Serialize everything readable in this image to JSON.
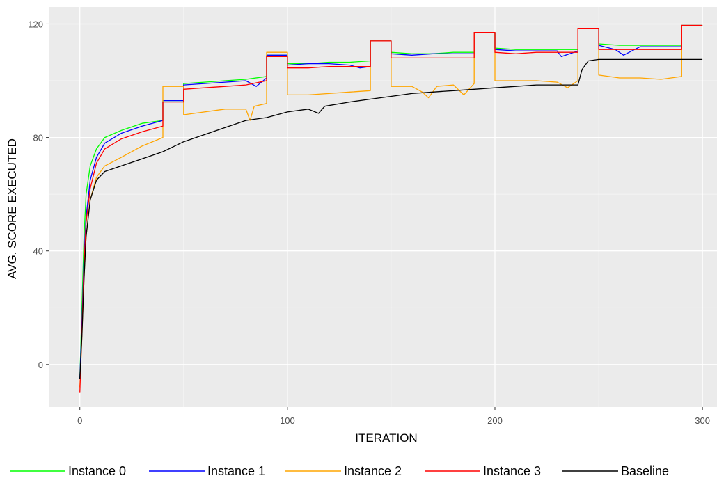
{
  "chart_data": {
    "type": "line",
    "title": "",
    "xlabel": "ITERATION",
    "ylabel": "AVG. SCORE EXECUTED",
    "xlim": [
      -15,
      307
    ],
    "ylim": [
      -15,
      126
    ],
    "x_ticks": [
      0,
      100,
      200,
      300
    ],
    "y_ticks": [
      0,
      40,
      80,
      120
    ],
    "grid": true,
    "legend_position": "bottom",
    "series": [
      {
        "name": "Instance 0",
        "color": "#00ff00",
        "points": [
          [
            0,
            -5
          ],
          [
            1,
            20
          ],
          [
            2,
            45
          ],
          [
            3,
            60
          ],
          [
            5,
            70
          ],
          [
            8,
            76
          ],
          [
            12,
            80
          ],
          [
            20,
            82.5
          ],
          [
            30,
            85
          ],
          [
            40,
            86
          ],
          [
            40,
            93
          ],
          [
            50,
            93
          ],
          [
            50,
            99
          ],
          [
            60,
            99.5
          ],
          [
            70,
            100
          ],
          [
            80,
            100.5
          ],
          [
            90,
            101.5
          ],
          [
            90,
            109
          ],
          [
            100,
            109
          ],
          [
            100,
            106
          ],
          [
            110,
            106
          ],
          [
            120,
            106.5
          ],
          [
            130,
            106.5
          ],
          [
            140,
            107
          ],
          [
            140,
            114
          ],
          [
            150,
            114
          ],
          [
            150,
            110
          ],
          [
            160,
            109.5
          ],
          [
            170,
            109.5
          ],
          [
            180,
            110
          ],
          [
            190,
            110
          ],
          [
            190,
            117
          ],
          [
            200,
            117
          ],
          [
            200,
            111.5
          ],
          [
            210,
            111
          ],
          [
            220,
            111
          ],
          [
            230,
            111
          ],
          [
            240,
            111
          ],
          [
            240,
            118.5
          ],
          [
            250,
            118.5
          ],
          [
            250,
            113
          ],
          [
            260,
            112.5
          ],
          [
            270,
            112.5
          ],
          [
            280,
            112.5
          ],
          [
            290,
            112.5
          ],
          [
            290,
            119.5
          ],
          [
            300,
            119.5
          ]
        ]
      },
      {
        "name": "Instance 1",
        "color": "#0000ff",
        "points": [
          [
            0,
            -5
          ],
          [
            1,
            15
          ],
          [
            2,
            38
          ],
          [
            3,
            52
          ],
          [
            5,
            65
          ],
          [
            8,
            73
          ],
          [
            12,
            78
          ],
          [
            20,
            81.5
          ],
          [
            30,
            84
          ],
          [
            40,
            86
          ],
          [
            40,
            93
          ],
          [
            50,
            93
          ],
          [
            50,
            98.5
          ],
          [
            60,
            99
          ],
          [
            70,
            99.5
          ],
          [
            80,
            100
          ],
          [
            85,
            98
          ],
          [
            90,
            101
          ],
          [
            90,
            109
          ],
          [
            100,
            109
          ],
          [
            100,
            105.5
          ],
          [
            110,
            106
          ],
          [
            120,
            106
          ],
          [
            130,
            105.5
          ],
          [
            135,
            104.5
          ],
          [
            140,
            105
          ],
          [
            140,
            114
          ],
          [
            150,
            114
          ],
          [
            150,
            109.5
          ],
          [
            160,
            109
          ],
          [
            170,
            109.5
          ],
          [
            180,
            109.5
          ],
          [
            190,
            109.5
          ],
          [
            190,
            117
          ],
          [
            200,
            117
          ],
          [
            200,
            111
          ],
          [
            210,
            110.5
          ],
          [
            220,
            110.5
          ],
          [
            230,
            110.5
          ],
          [
            232,
            108.5
          ],
          [
            240,
            110.5
          ],
          [
            240,
            118.5
          ],
          [
            250,
            118.5
          ],
          [
            250,
            112.5
          ],
          [
            258,
            111
          ],
          [
            262,
            109
          ],
          [
            270,
            112
          ],
          [
            280,
            112
          ],
          [
            290,
            112
          ],
          [
            290,
            119.5
          ],
          [
            300,
            119.5
          ]
        ]
      },
      {
        "name": "Instance 2",
        "color": "#ffa500",
        "points": [
          [
            0,
            -8
          ],
          [
            1,
            10
          ],
          [
            2,
            30
          ],
          [
            3,
            45
          ],
          [
            5,
            58
          ],
          [
            8,
            66
          ],
          [
            12,
            70
          ],
          [
            20,
            73
          ],
          [
            30,
            77
          ],
          [
            40,
            80
          ],
          [
            40,
            98
          ],
          [
            50,
            98
          ],
          [
            50,
            88
          ],
          [
            60,
            89
          ],
          [
            70,
            90
          ],
          [
            80,
            90
          ],
          [
            82,
            86
          ],
          [
            84,
            91
          ],
          [
            90,
            92
          ],
          [
            90,
            110
          ],
          [
            100,
            110
          ],
          [
            100,
            95
          ],
          [
            110,
            95
          ],
          [
            120,
            95.5
          ],
          [
            130,
            96
          ],
          [
            140,
            96.5
          ],
          [
            140,
            114
          ],
          [
            150,
            114
          ],
          [
            150,
            98
          ],
          [
            160,
            98
          ],
          [
            165,
            96
          ],
          [
            168,
            94
          ],
          [
            172,
            98
          ],
          [
            180,
            98.5
          ],
          [
            185,
            95
          ],
          [
            190,
            99
          ],
          [
            190,
            117
          ],
          [
            200,
            117
          ],
          [
            200,
            100
          ],
          [
            210,
            100
          ],
          [
            220,
            100
          ],
          [
            230,
            99.5
          ],
          [
            235,
            97.5
          ],
          [
            240,
            100
          ],
          [
            240,
            118.5
          ],
          [
            250,
            118.5
          ],
          [
            250,
            102
          ],
          [
            260,
            101
          ],
          [
            270,
            101
          ],
          [
            280,
            100.5
          ],
          [
            290,
            101.5
          ],
          [
            290,
            119.5
          ],
          [
            300,
            119.5
          ]
        ]
      },
      {
        "name": "Instance 3",
        "color": "#ff0000",
        "points": [
          [
            0,
            -10
          ],
          [
            1,
            12
          ],
          [
            2,
            35
          ],
          [
            3,
            50
          ],
          [
            5,
            62
          ],
          [
            8,
            71
          ],
          [
            12,
            76
          ],
          [
            20,
            79.5
          ],
          [
            30,
            82
          ],
          [
            40,
            84
          ],
          [
            40,
            92.5
          ],
          [
            50,
            92.5
          ],
          [
            50,
            97
          ],
          [
            60,
            97.5
          ],
          [
            70,
            98
          ],
          [
            80,
            98.5
          ],
          [
            90,
            100
          ],
          [
            90,
            108.5
          ],
          [
            100,
            108.5
          ],
          [
            100,
            104.5
          ],
          [
            110,
            104.5
          ],
          [
            120,
            105
          ],
          [
            130,
            105
          ],
          [
            140,
            105
          ],
          [
            140,
            114
          ],
          [
            150,
            114
          ],
          [
            150,
            108
          ],
          [
            160,
            108
          ],
          [
            170,
            108
          ],
          [
            180,
            108
          ],
          [
            190,
            108
          ],
          [
            190,
            117
          ],
          [
            200,
            117
          ],
          [
            200,
            110
          ],
          [
            210,
            109.5
          ],
          [
            220,
            110
          ],
          [
            230,
            110
          ],
          [
            240,
            110
          ],
          [
            240,
            118.5
          ],
          [
            250,
            118.5
          ],
          [
            250,
            111
          ],
          [
            260,
            111
          ],
          [
            270,
            111
          ],
          [
            280,
            111
          ],
          [
            290,
            111
          ],
          [
            290,
            119.5
          ],
          [
            300,
            119.5
          ]
        ]
      },
      {
        "name": "Baseline",
        "color": "#000000",
        "points": [
          [
            0,
            -5
          ],
          [
            1,
            10
          ],
          [
            2,
            30
          ],
          [
            3,
            45
          ],
          [
            5,
            58
          ],
          [
            8,
            65
          ],
          [
            12,
            68
          ],
          [
            20,
            70
          ],
          [
            30,
            72.5
          ],
          [
            40,
            75
          ],
          [
            50,
            78.5
          ],
          [
            60,
            81
          ],
          [
            70,
            83.5
          ],
          [
            80,
            86
          ],
          [
            90,
            87
          ],
          [
            100,
            89
          ],
          [
            110,
            90
          ],
          [
            115,
            88.5
          ],
          [
            118,
            91
          ],
          [
            130,
            92.5
          ],
          [
            140,
            93.5
          ],
          [
            150,
            94.5
          ],
          [
            160,
            95.5
          ],
          [
            170,
            96
          ],
          [
            180,
            96.5
          ],
          [
            190,
            97
          ],
          [
            200,
            97.5
          ],
          [
            210,
            98
          ],
          [
            220,
            98.5
          ],
          [
            230,
            98.5
          ],
          [
            240,
            98.5
          ],
          [
            242,
            104
          ],
          [
            245,
            107
          ],
          [
            250,
            107.5
          ],
          [
            260,
            107.5
          ],
          [
            270,
            107.5
          ],
          [
            280,
            107.5
          ],
          [
            290,
            107.5
          ],
          [
            300,
            107.5
          ]
        ]
      }
    ]
  }
}
